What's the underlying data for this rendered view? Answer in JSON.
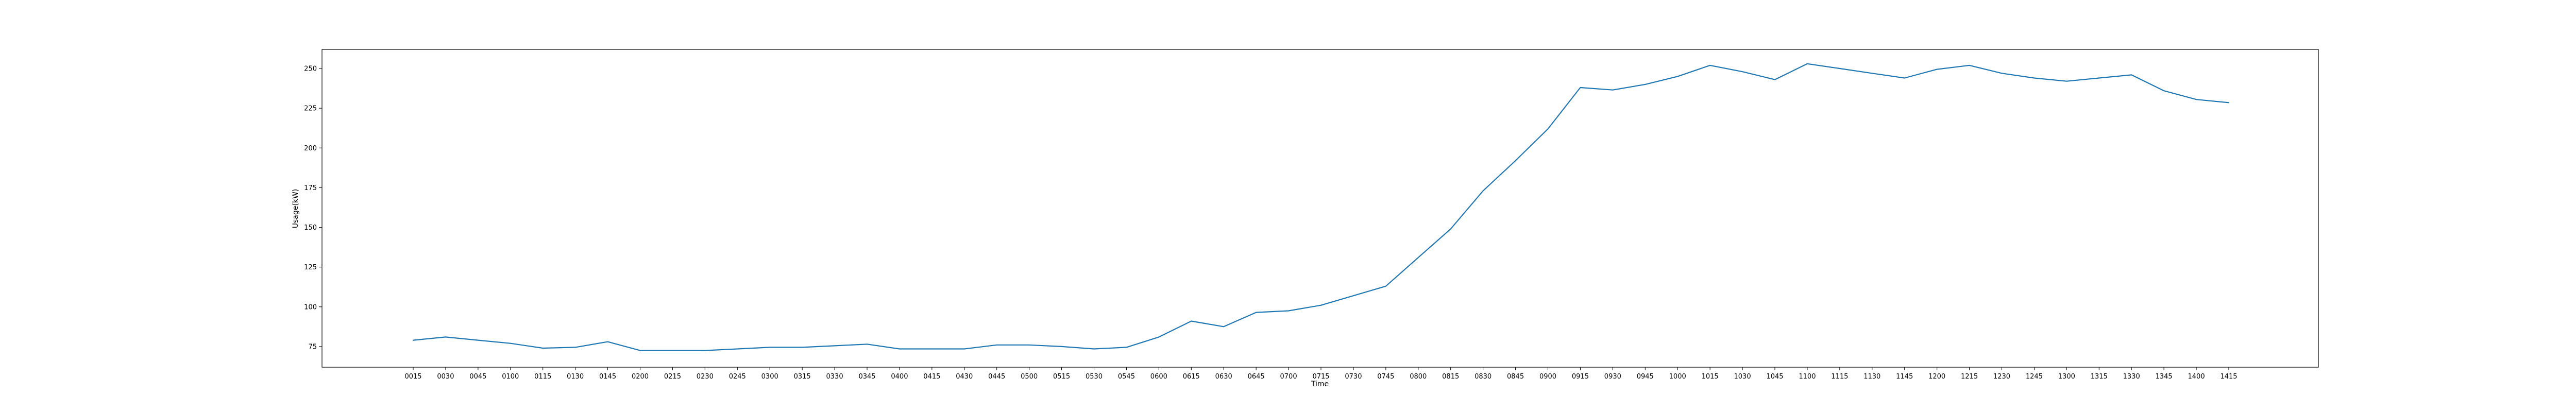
{
  "chart_data": {
    "type": "line",
    "xlabel": "Time",
    "ylabel": "Usage(kW)",
    "ylim": [
      62,
      262
    ],
    "yticks": [
      75,
      100,
      125,
      150,
      175,
      200,
      225,
      250
    ],
    "grid": false,
    "categories": [
      "0015",
      "0030",
      "0045",
      "0100",
      "0115",
      "0130",
      "0145",
      "0200",
      "0215",
      "0230",
      "0245",
      "0300",
      "0315",
      "0330",
      "0345",
      "0400",
      "0415",
      "0430",
      "0445",
      "0500",
      "0515",
      "0530",
      "0545",
      "0600",
      "0615",
      "0630",
      "0645",
      "0700",
      "0715",
      "0730",
      "0745",
      "0800",
      "0815",
      "0830",
      "0845",
      "0900",
      "0915",
      "0930",
      "0945",
      "1000",
      "1015",
      "1030",
      "1045",
      "1100",
      "1115",
      "1130",
      "1145",
      "1200",
      "1215",
      "1230",
      "1245",
      "1300",
      "1315",
      "1330",
      "1345",
      "1400",
      "1415"
    ],
    "series": [
      {
        "color": "#1f77b4",
        "values": [
          79,
          81,
          79,
          77,
          74,
          74.5,
          78,
          72.5,
          72.5,
          72.5,
          73.5,
          74.5,
          74.5,
          75.5,
          76.5,
          73.5,
          73.5,
          73.5,
          76,
          76,
          75,
          73.5,
          74.5,
          81,
          91,
          87.5,
          96.5,
          97.5,
          101,
          107,
          113,
          131,
          149,
          173,
          192,
          212,
          238,
          236.5,
          240,
          245,
          252,
          248,
          243,
          253,
          250,
          247,
          244,
          249.5,
          252,
          247,
          244,
          242,
          244,
          246,
          236,
          230.5,
          228.5
        ]
      }
    ]
  }
}
